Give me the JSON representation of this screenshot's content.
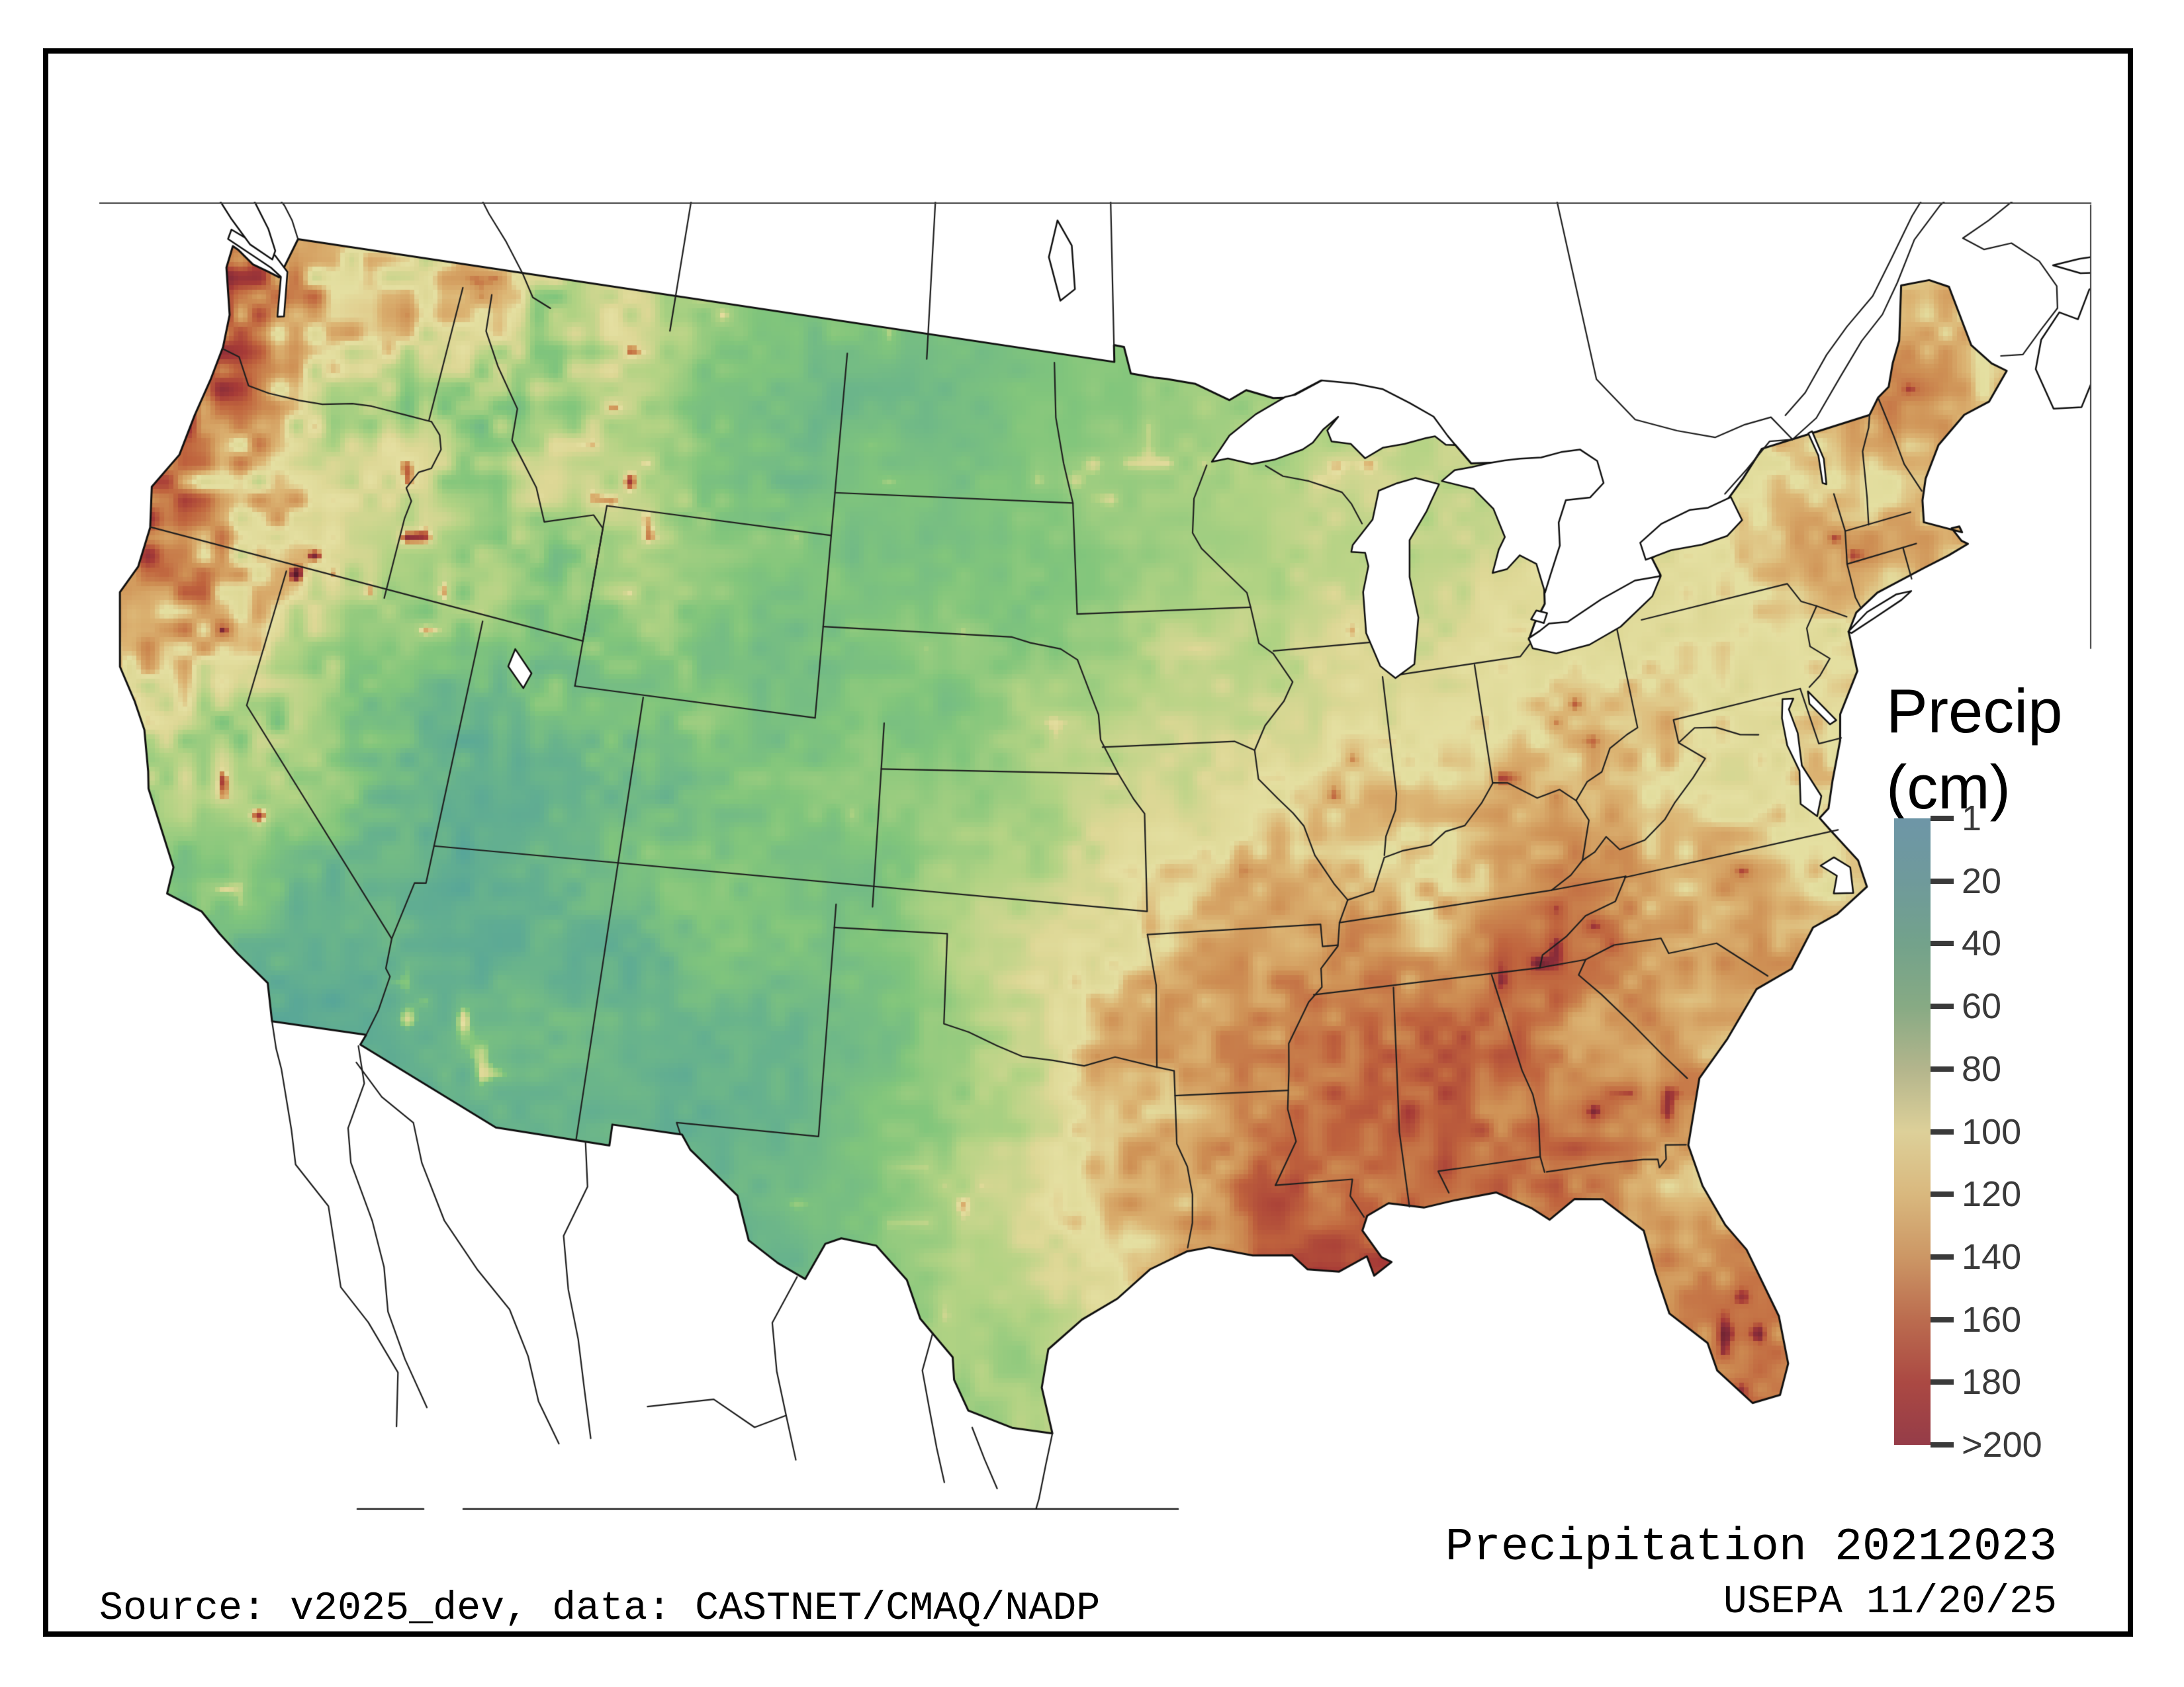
{
  "page": {
    "background": "#ffffff"
  },
  "frame": {
    "color": "#000000"
  },
  "legend": {
    "title_line1": "Precip",
    "title_line2": "(cm)",
    "tick_labels": [
      "1",
      "20",
      "40",
      "60",
      "80",
      "100",
      "120",
      "140",
      "160",
      "180",
      ">200"
    ],
    "colorbar_colors": [
      "#6e96a7",
      "#6f9a9b",
      "#73a28b",
      "#87aa84",
      "#b3b58c",
      "#ddd099",
      "#d9b87e",
      "#cc9765",
      "#bb6c4f",
      "#ab4943",
      "#953c48"
    ],
    "text_color": "#3a3a3a",
    "title_color": "#000000"
  },
  "footer": {
    "title": "Precipitation 20212023",
    "agency": "USEPA 11/20/25",
    "source": "Source: v2025_dev, data: CASTNET/CMAQ/NADP"
  },
  "map": {
    "water_color": "#ffffff",
    "outline_color": "#101010",
    "state_line_color": "#1f1f1f",
    "neighbor_line_color": "#1c1c1c",
    "domain_edge_color": "#3c3c3c"
  },
  "chart_data": {
    "type": "heatmap",
    "title": "Precipitation 20212023",
    "variable": "Precip",
    "units": "cm",
    "legend_ticks": [
      1,
      20,
      40,
      60,
      80,
      100,
      120,
      140,
      160,
      180,
      200
    ],
    "legend_tick_labels": [
      "1",
      "20",
      "40",
      "60",
      "80",
      "100",
      "120",
      "140",
      "160",
      "180",
      ">200"
    ],
    "value_range_cm": [
      1,
      200
    ],
    "legend_position": "right",
    "map_colormap": [
      [
        1,
        "#60a1ab"
      ],
      [
        20,
        "#55a49b"
      ],
      [
        40,
        "#69b48c"
      ],
      [
        60,
        "#82c67c"
      ],
      [
        80,
        "#b2d384"
      ],
      [
        100,
        "#ded896"
      ],
      [
        112,
        "#e5e0a2"
      ],
      [
        124,
        "#dcb473"
      ],
      [
        140,
        "#cf9155"
      ],
      [
        160,
        "#c0643e"
      ],
      [
        180,
        "#a73b37"
      ],
      [
        200,
        "#8a2d3a"
      ],
      [
        250,
        "#531929"
      ]
    ],
    "sample_points_lonlat_cm": [
      [
        -124.4,
        47.9,
        255
      ],
      [
        -123.9,
        47.4,
        245
      ],
      [
        -124.1,
        46.6,
        240
      ],
      [
        -123.8,
        45.6,
        230
      ],
      [
        -123.95,
        44.5,
        235
      ],
      [
        -124.1,
        43.3,
        225
      ],
      [
        -124.0,
        42.2,
        235
      ],
      [
        -123.85,
        41.2,
        245
      ],
      [
        -123.7,
        40.2,
        225
      ],
      [
        -123.2,
        39.0,
        170
      ],
      [
        -122.9,
        38.3,
        120
      ],
      [
        -122.35,
        47.45,
        100
      ],
      [
        -122.6,
        46.5,
        135
      ],
      [
        -122.95,
        45.4,
        115
      ],
      [
        -123.05,
        44.4,
        115
      ],
      [
        -123.15,
        43.3,
        125
      ],
      [
        -122.4,
        42.3,
        110
      ],
      [
        -121.5,
        48.6,
        220
      ],
      [
        -121.35,
        47.4,
        205
      ],
      [
        -121.5,
        46.3,
        195
      ],
      [
        -121.8,
        45.2,
        185
      ],
      [
        -122.05,
        44.2,
        195
      ],
      [
        -122.15,
        43.0,
        175
      ],
      [
        -122.4,
        41.5,
        130
      ],
      [
        -119.6,
        47.5,
        23
      ],
      [
        -118.2,
        46.5,
        32
      ],
      [
        -120.2,
        46.2,
        30
      ],
      [
        -117.7,
        47.9,
        55
      ],
      [
        -120.6,
        43.6,
        30
      ],
      [
        -118.3,
        43.2,
        28
      ],
      [
        -117.6,
        44.6,
        38
      ],
      [
        -119.8,
        44.8,
        40
      ],
      [
        -121.3,
        40.4,
        140
      ],
      [
        -120.9,
        39.4,
        155
      ],
      [
        -120.2,
        38.5,
        145
      ],
      [
        -119.5,
        37.5,
        135
      ],
      [
        -118.7,
        36.7,
        115
      ],
      [
        -118.2,
        36.0,
        70
      ],
      [
        -121.9,
        37.2,
        40
      ],
      [
        -121.2,
        36.2,
        35
      ],
      [
        -119.9,
        36.4,
        24
      ],
      [
        -120.6,
        37.7,
        30
      ],
      [
        -121.7,
        39.3,
        50
      ],
      [
        -122.2,
        40.3,
        70
      ],
      [
        -119.1,
        34.9,
        40
      ],
      [
        -118.0,
        34.1,
        35
      ],
      [
        -116.3,
        33.4,
        16
      ],
      [
        -115.4,
        34.6,
        11
      ],
      [
        -116.6,
        35.9,
        12
      ],
      [
        -117.7,
        36.6,
        14
      ],
      [
        -115.5,
        32.9,
        10
      ],
      [
        -117.6,
        39.6,
        20
      ],
      [
        -115.8,
        40.6,
        26
      ],
      [
        -114.9,
        38.6,
        22
      ],
      [
        -116.9,
        41.6,
        28
      ],
      [
        -118.7,
        41.0,
        25
      ],
      [
        -118.9,
        38.3,
        18
      ],
      [
        -113.6,
        38.6,
        26
      ],
      [
        -111.9,
        40.6,
        45
      ],
      [
        -111.6,
        39.1,
        35
      ],
      [
        -110.4,
        38.1,
        24
      ],
      [
        -112.2,
        41.8,
        65
      ],
      [
        -110.9,
        40.7,
        80
      ],
      [
        -113.5,
        37.2,
        35
      ],
      [
        -113.9,
        33.6,
        14
      ],
      [
        -112.6,
        34.6,
        30
      ],
      [
        -110.9,
        32.6,
        35
      ],
      [
        -109.9,
        34.1,
        38
      ],
      [
        -111.6,
        36.5,
        22
      ],
      [
        -111.7,
        34.3,
        60
      ],
      [
        -109.2,
        31.8,
        38
      ],
      [
        -108.3,
        33.6,
        42
      ],
      [
        -106.6,
        34.6,
        32
      ],
      [
        -105.6,
        36.3,
        42
      ],
      [
        -104.1,
        32.6,
        34
      ],
      [
        -107.9,
        36.6,
        28
      ],
      [
        -105.4,
        36.0,
        70
      ],
      [
        -106.4,
        32.3,
        26
      ],
      [
        -107.9,
        39.1,
        68
      ],
      [
        -106.4,
        39.4,
        72
      ],
      [
        -105.3,
        37.6,
        58
      ],
      [
        -102.9,
        38.6,
        44
      ],
      [
        -105.9,
        40.6,
        62
      ],
      [
        -107.6,
        37.8,
        95
      ],
      [
        -105.6,
        39.9,
        85
      ],
      [
        -102.5,
        40.8,
        48
      ],
      [
        -110.1,
        43.9,
        105
      ],
      [
        -109.6,
        42.6,
        48
      ],
      [
        -107.1,
        43.1,
        33
      ],
      [
        -104.9,
        42.1,
        44
      ],
      [
        -110.6,
        41.3,
        58
      ],
      [
        -110.8,
        44.4,
        125
      ],
      [
        -109.6,
        45.1,
        85
      ],
      [
        -113.9,
        47.9,
        145
      ],
      [
        -112.9,
        46.4,
        65
      ],
      [
        -110.6,
        46.9,
        42
      ],
      [
        -108.1,
        46.1,
        36
      ],
      [
        -105.1,
        46.6,
        36
      ],
      [
        -109.1,
        48.4,
        33
      ],
      [
        -113.9,
        48.6,
        150
      ],
      [
        -112.1,
        45.7,
        50
      ],
      [
        -115.4,
        45.4,
        115
      ],
      [
        -114.4,
        43.9,
        60
      ],
      [
        -113.1,
        44.6,
        55
      ],
      [
        -116.1,
        47.1,
        85
      ],
      [
        -114.1,
        42.4,
        35
      ],
      [
        -116.3,
        44.9,
        105
      ],
      [
        -114.9,
        46.6,
        105
      ],
      [
        -100.6,
        48.1,
        44
      ],
      [
        -97.6,
        48.6,
        52
      ],
      [
        -100.4,
        46.1,
        46
      ],
      [
        -97.1,
        46.4,
        58
      ],
      [
        -100.1,
        44.1,
        52
      ],
      [
        -103.8,
        44.3,
        68
      ],
      [
        -98.1,
        43.6,
        62
      ],
      [
        -102.1,
        46.9,
        42
      ],
      [
        -101.1,
        41.6,
        52
      ],
      [
        -98.6,
        40.9,
        66
      ],
      [
        -96.1,
        41.1,
        78
      ],
      [
        -100.6,
        38.9,
        58
      ],
      [
        -97.6,
        38.6,
        78
      ],
      [
        -95.6,
        38.1,
        92
      ],
      [
        -99.6,
        36.1,
        62
      ],
      [
        -97.6,
        35.6,
        88
      ],
      [
        -95.6,
        35.1,
        115
      ],
      [
        -101.6,
        34.1,
        48
      ],
      [
        -99.6,
        32.6,
        62
      ],
      [
        -97.9,
        31.1,
        78
      ],
      [
        -95.6,
        31.6,
        115
      ],
      [
        -94.3,
        31.1,
        135
      ],
      [
        -95.4,
        29.9,
        128
      ],
      [
        -97.4,
        28.6,
        82
      ],
      [
        -99.1,
        27.6,
        58
      ],
      [
        -98.4,
        26.4,
        62
      ],
      [
        -101.1,
        30.1,
        44
      ],
      [
        -103.6,
        30.6,
        30
      ],
      [
        -105.1,
        31.6,
        26
      ],
      [
        -102.6,
        32.9,
        42
      ],
      [
        -96.9,
        33.4,
        95
      ],
      [
        -94.9,
        33.3,
        125
      ],
      [
        -94.9,
        46.6,
        62
      ],
      [
        -92.6,
        47.3,
        68
      ],
      [
        -94.1,
        44.6,
        72
      ],
      [
        -93.6,
        42.4,
        82
      ],
      [
        -91.6,
        41.4,
        92
      ],
      [
        -93.6,
        39.6,
        100
      ],
      [
        -91.6,
        38.4,
        105
      ],
      [
        -93.9,
        37.1,
        118
      ],
      [
        -91.1,
        36.6,
        122
      ],
      [
        -96.6,
        44.4,
        60
      ],
      [
        -89.9,
        45.4,
        78
      ],
      [
        -88.6,
        44.1,
        80
      ],
      [
        -89.6,
        42.9,
        90
      ],
      [
        -89.1,
        40.6,
        98
      ],
      [
        -88.1,
        38.9,
        112
      ],
      [
        -85.6,
        44.9,
        80
      ],
      [
        -84.6,
        43.4,
        80
      ],
      [
        -85.9,
        42.1,
        92
      ],
      [
        -84.6,
        40.3,
        98
      ],
      [
        -87.6,
        46.4,
        85
      ],
      [
        -84.9,
        46.4,
        82
      ],
      [
        -86.6,
        39.6,
        110
      ],
      [
        -83.6,
        40.6,
        98
      ],
      [
        -81.9,
        40.9,
        98
      ],
      [
        -85.6,
        38.1,
        120
      ],
      [
        -83.6,
        37.9,
        122
      ],
      [
        -87.6,
        36.9,
        132
      ],
      [
        -86.1,
        35.9,
        140
      ],
      [
        -84.0,
        35.6,
        180
      ],
      [
        -82.6,
        35.6,
        165
      ],
      [
        -88.6,
        36.6,
        128
      ],
      [
        -84.8,
        34.9,
        155
      ],
      [
        -94.1,
        34.7,
        155
      ],
      [
        -92.6,
        34.6,
        135
      ],
      [
        -90.9,
        34.1,
        138
      ],
      [
        -92.6,
        32.6,
        145
      ],
      [
        -91.9,
        30.9,
        162
      ],
      [
        -90.4,
        32.6,
        155
      ],
      [
        -89.6,
        31.1,
        180
      ],
      [
        -87.6,
        32.6,
        170
      ],
      [
        -86.6,
        33.6,
        155
      ],
      [
        -87.9,
        30.9,
        200
      ],
      [
        -85.9,
        30.9,
        192
      ],
      [
        -88.9,
        33.9,
        148
      ],
      [
        -86.4,
        31.6,
        168
      ],
      [
        -89.9,
        30.4,
        185
      ],
      [
        -91.1,
        29.8,
        175
      ],
      [
        -93.0,
        30.2,
        150
      ],
      [
        -84.6,
        33.6,
        132
      ],
      [
        -83.1,
        32.6,
        122
      ],
      [
        -81.6,
        31.6,
        118
      ],
      [
        -84.9,
        34.9,
        158
      ],
      [
        -82.6,
        34.3,
        128
      ],
      [
        -80.9,
        33.4,
        122
      ],
      [
        -81.6,
        34.9,
        112
      ],
      [
        -79.6,
        34.6,
        118
      ],
      [
        -78.1,
        35.4,
        126
      ],
      [
        -76.6,
        35.6,
        132
      ],
      [
        -79.9,
        36.3,
        112
      ],
      [
        -82.1,
        28.9,
        132
      ],
      [
        -81.6,
        27.1,
        132
      ],
      [
        -80.6,
        26.1,
        148
      ],
      [
        -82.6,
        30.1,
        128
      ],
      [
        -83.1,
        29.1,
        138
      ],
      [
        -85.4,
        30.1,
        178
      ],
      [
        -81.3,
        29.5,
        125
      ],
      [
        -80.8,
        28.1,
        130
      ],
      [
        -78.6,
        37.6,
        112
      ],
      [
        -76.6,
        37.9,
        118
      ],
      [
        -80.6,
        38.9,
        122
      ],
      [
        -79.6,
        38.6,
        160
      ],
      [
        -78.7,
        38.5,
        88
      ],
      [
        -79.1,
        39.4,
        102
      ],
      [
        -77.6,
        39.6,
        108
      ],
      [
        -76.1,
        39.9,
        112
      ],
      [
        -77.6,
        41.1,
        102
      ],
      [
        -79.9,
        41.1,
        108
      ],
      [
        -75.6,
        40.6,
        118
      ],
      [
        -74.4,
        40.0,
        118
      ],
      [
        -77.1,
        42.6,
        98
      ],
      [
        -75.1,
        42.4,
        115
      ],
      [
        -74.3,
        44.1,
        140
      ],
      [
        -73.6,
        42.9,
        112
      ],
      [
        -72.6,
        43.6,
        122
      ],
      [
        -71.4,
        44.3,
        168
      ],
      [
        -70.6,
        43.6,
        122
      ],
      [
        -71.6,
        42.4,
        128
      ],
      [
        -73.1,
        41.6,
        128
      ],
      [
        -69.1,
        46.9,
        148
      ],
      [
        -68.6,
        45.6,
        132
      ],
      [
        -70.1,
        45.1,
        125
      ],
      [
        -69.9,
        44.1,
        132
      ],
      [
        -68.1,
        44.6,
        135
      ],
      [
        -67.9,
        46.6,
        135
      ],
      [
        -79.3,
        38.0,
        150
      ],
      [
        -80.8,
        37.4,
        135
      ],
      [
        -83.2,
        35.2,
        190
      ],
      [
        -91.9,
        34.8,
        160
      ],
      [
        -94.6,
        34.7,
        165
      ],
      [
        -93.2,
        34.9,
        150
      ]
    ]
  }
}
